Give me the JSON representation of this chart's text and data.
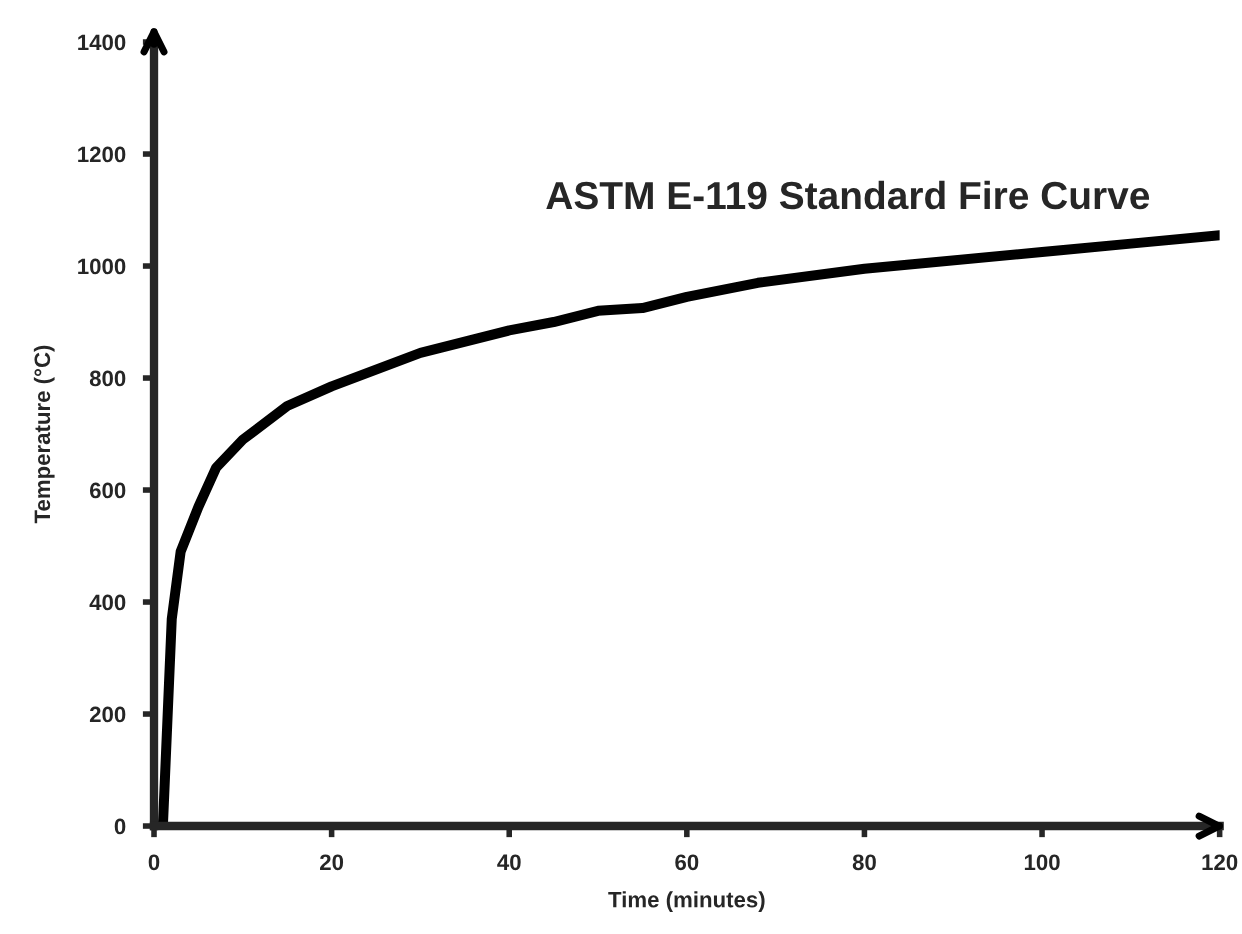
{
  "chart_data": {
    "type": "line",
    "title": "ASTM E-119 Standard Fire Curve",
    "xlabel": "Time (minutes)",
    "ylabel": "Temperature (°C)",
    "x": [
      1,
      2,
      3,
      5,
      7,
      10,
      15,
      20,
      30,
      40,
      45,
      50,
      55,
      60,
      68,
      80,
      100,
      110,
      120
    ],
    "series": [
      {
        "color": "#000000",
        "values": [
          0,
          370,
          490,
          570,
          640,
          690,
          750,
          785,
          845,
          885,
          900,
          920,
          925,
          945,
          970,
          995,
          1025,
          1040,
          1055
        ]
      }
    ],
    "xlim": [
      0,
      120
    ],
    "ylim": [
      0,
      1400
    ],
    "xticks": [
      0,
      20,
      40,
      60,
      80,
      100,
      120
    ],
    "yticks": [
      0,
      200,
      400,
      600,
      800,
      1000,
      1200,
      1400
    ],
    "grid": false,
    "legend": false,
    "marker": "none",
    "line_style": "solid"
  }
}
